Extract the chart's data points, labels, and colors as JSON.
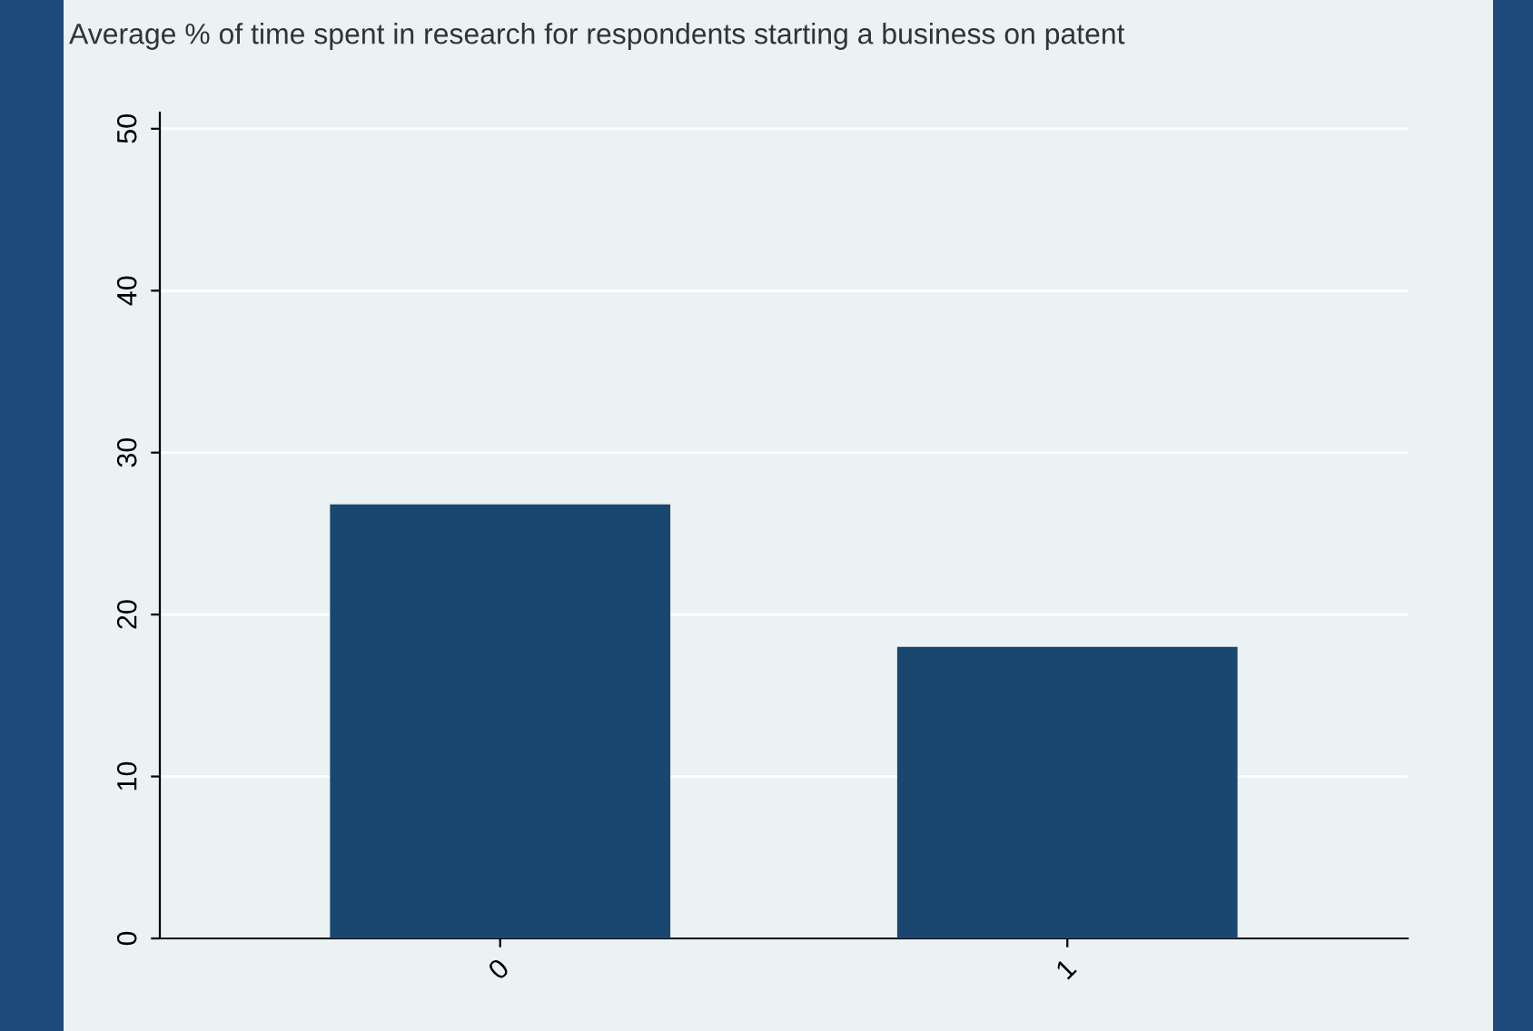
{
  "chart_data": {
    "type": "bar",
    "title": "Average % of time spent in research for respondents starting a business on patent",
    "categories": [
      "0",
      "1"
    ],
    "values": [
      26.8,
      18.0
    ],
    "color": "#1a476f",
    "ylim": [
      0,
      51
    ],
    "yticks": [
      0,
      10,
      20,
      30,
      40,
      50
    ],
    "grid": "y",
    "legend": false
  }
}
